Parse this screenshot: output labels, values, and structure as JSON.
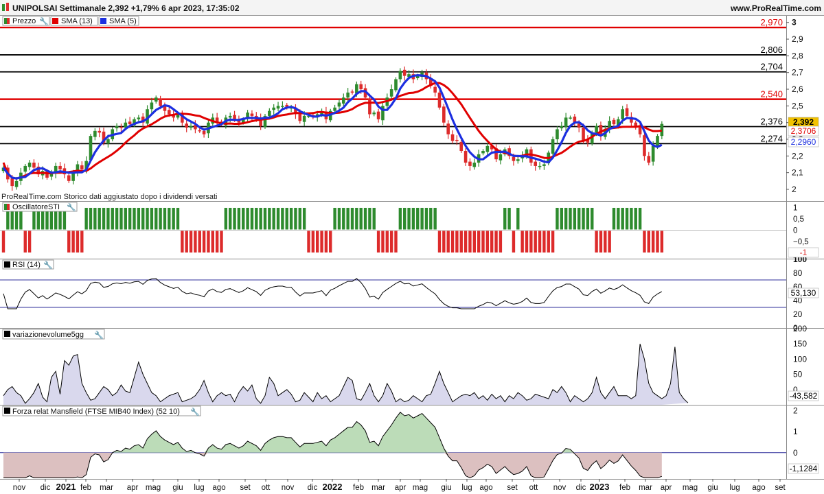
{
  "header": {
    "symbol": "UNIPOLSAI",
    "info": "UNIPOLSAI Settimanale 2,392 +1,79% 6 apr 2023, 17:35:02",
    "site": "www.ProRealTime.com"
  },
  "legend": {
    "price": "Prezzo",
    "sma13": "SMA (13)",
    "sma5": "SMA (5)",
    "watermark": "ProRealTime.com  Storico dati aggiustato dopo i dividendi versati"
  },
  "colors": {
    "up": "#2e8b2e",
    "down": "#dd2b2b",
    "sma13": "#e00000",
    "sma5": "#1c2fe0",
    "level_black": "#000000",
    "level_red": "#e00000",
    "last_price_bg": "#f2c200",
    "grid": "#d9d9d9",
    "volume_fill": "#c9c8e6",
    "mansfield_pos": "#bcdcb8",
    "mansfield_neg": "#dcc0c0"
  },
  "chart_data": [
    {
      "name": "price",
      "type": "candlestick",
      "ylim": [
        2.0,
        3.0
      ],
      "yticks": [
        "3",
        "2,9",
        "2,8",
        "2,7",
        "2,6",
        "2,5",
        "2,4",
        "2,3",
        "2,2",
        "2,1",
        "2"
      ],
      "levels": [
        {
          "value": 2.97,
          "label": "2,970",
          "color": "red"
        },
        {
          "value": 2.806,
          "label": "2,806",
          "color": "black"
        },
        {
          "value": 2.704,
          "label": "2,704",
          "color": "black"
        },
        {
          "value": 2.54,
          "label": "2,540",
          "color": "red"
        },
        {
          "value": 2.376,
          "label": "2,376",
          "color": "black"
        },
        {
          "value": 2.274,
          "label": "2,274",
          "color": "black"
        }
      ],
      "last_price": {
        "value": 2.392,
        "label": "2,392"
      },
      "sma13_last": {
        "value": 2.3706,
        "label": "2,3706"
      },
      "sma5_last": {
        "value": 2.296,
        "label": "2,2960"
      },
      "closes": [
        2.13,
        2.06,
        2.02,
        2.05,
        2.1,
        2.14,
        2.16,
        2.13,
        2.09,
        2.11,
        2.07,
        2.1,
        2.14,
        2.12,
        2.09,
        2.05,
        2.1,
        2.15,
        2.12,
        2.17,
        2.32,
        2.35,
        2.34,
        2.28,
        2.3,
        2.36,
        2.38,
        2.37,
        2.4,
        2.39,
        2.42,
        2.43,
        2.4,
        2.48,
        2.52,
        2.55,
        2.5,
        2.47,
        2.45,
        2.43,
        2.45,
        2.4,
        2.37,
        2.38,
        2.36,
        2.35,
        2.33,
        2.4,
        2.43,
        2.4,
        2.39,
        2.43,
        2.44,
        2.42,
        2.4,
        2.42,
        2.46,
        2.44,
        2.42,
        2.38,
        2.44,
        2.47,
        2.49,
        2.5,
        2.5,
        2.49,
        2.49,
        2.45,
        2.41,
        2.44,
        2.44,
        2.44,
        2.45,
        2.46,
        2.42,
        2.47,
        2.49,
        2.52,
        2.55,
        2.58,
        2.58,
        2.63,
        2.6,
        2.55,
        2.45,
        2.46,
        2.42,
        2.5,
        2.55,
        2.6,
        2.66,
        2.71,
        2.68,
        2.69,
        2.66,
        2.68,
        2.7,
        2.66,
        2.62,
        2.58,
        2.49,
        2.4,
        2.33,
        2.29,
        2.29,
        2.23,
        2.16,
        2.14,
        2.16,
        2.21,
        2.23,
        2.26,
        2.24,
        2.18,
        2.21,
        2.24,
        2.2,
        2.17,
        2.18,
        2.2,
        2.24,
        2.16,
        2.14,
        2.14,
        2.15,
        2.22,
        2.3,
        2.36,
        2.38,
        2.43,
        2.43,
        2.4,
        2.37,
        2.29,
        2.28,
        2.34,
        2.38,
        2.32,
        2.36,
        2.41,
        2.39,
        2.42,
        2.48,
        2.44,
        2.4,
        2.37,
        2.33,
        2.2,
        2.16,
        2.26,
        2.32,
        2.392
      ]
    },
    {
      "name": "OscillatoreSTI",
      "type": "bar",
      "ylim": [
        -1,
        1
      ],
      "yticks": [
        "1",
        "0,5",
        "0",
        "−0,5",
        "−1"
      ],
      "last": {
        "value": -1,
        "label": "-1"
      }
    },
    {
      "name": "RSI (14)",
      "type": "line",
      "ylim": [
        0,
        100
      ],
      "yticks": [
        "100",
        "80",
        "60",
        "40",
        "20",
        "0"
      ],
      "bands": [
        70,
        30
      ],
      "last": {
        "value": 53.13,
        "label": "53,130"
      }
    },
    {
      "name": "variazionevolume5gg",
      "type": "area",
      "ylim": [
        -50,
        200
      ],
      "yticks": [
        "200",
        "150",
        "100",
        "50",
        "0"
      ],
      "last": {
        "value": -43.582,
        "label": "-43,582"
      },
      "values": [
        -20,
        0,
        10,
        -10,
        -20,
        -45,
        -30,
        -10,
        20,
        -25,
        -40,
        40,
        60,
        -15,
        95,
        80,
        110,
        115,
        20,
        -10,
        -35,
        -30,
        -10,
        10,
        0,
        -20,
        -10,
        15,
        -5,
        -10,
        40,
        90,
        50,
        20,
        -10,
        -20,
        -40,
        -30,
        -20,
        -15,
        -10,
        -40,
        -35,
        -30,
        -20,
        0,
        30,
        -10,
        -40,
        -20,
        -10,
        -20,
        -15,
        -40,
        -10,
        10,
        -5,
        15,
        -30,
        -45,
        -20,
        40,
        20,
        -20,
        -10,
        0,
        -15,
        -40,
        -35,
        -10,
        -25,
        -40,
        -10,
        -30,
        -20,
        -40,
        -30,
        -20,
        10,
        40,
        30,
        -30,
        -35,
        -10,
        20,
        -20,
        -40,
        -20,
        20,
        -5,
        -40,
        -30,
        -40,
        -35,
        -20,
        -30,
        -40,
        -20,
        -15,
        20,
        60,
        20,
        -10,
        -40,
        -30,
        -20,
        -15,
        -20,
        -10,
        -30,
        -20,
        -35,
        -15,
        -30,
        -20,
        -40,
        -20,
        -30,
        -10,
        -20,
        -35,
        -30,
        -15,
        -20,
        -25,
        -30,
        0,
        -10,
        10,
        -10,
        -40,
        -20,
        -30,
        -40,
        -30,
        -10,
        40,
        -10,
        -30,
        -10,
        10,
        -20,
        -20,
        -20,
        -30,
        -20,
        150,
        100,
        20,
        -10,
        -20,
        -30,
        -20,
        20,
        140,
        -10,
        -30,
        -43.582
      ]
    },
    {
      "name": "Forza relat Mansfield (FTSE MIB40 Index) (52 10)",
      "type": "area",
      "ylim": [
        -1.2,
        2.0
      ],
      "yticks": [
        "2",
        "1",
        "0"
      ],
      "last": {
        "value": -1.1284,
        "label": "-1,1284"
      }
    }
  ],
  "xaxis": {
    "ticks": [
      {
        "label": "nov",
        "bold": false
      },
      {
        "label": "dic",
        "bold": false
      },
      {
        "label": "2021",
        "bold": true
      },
      {
        "label": "feb",
        "bold": false
      },
      {
        "label": "mar",
        "bold": false
      },
      {
        "label": "apr",
        "bold": false
      },
      {
        "label": "mag",
        "bold": false
      },
      {
        "label": "giu",
        "bold": false
      },
      {
        "label": "lug",
        "bold": false
      },
      {
        "label": "ago",
        "bold": false
      },
      {
        "label": "set",
        "bold": false
      },
      {
        "label": "ott",
        "bold": false
      },
      {
        "label": "nov",
        "bold": false
      },
      {
        "label": "dic",
        "bold": false
      },
      {
        "label": "2022",
        "bold": true
      },
      {
        "label": "feb",
        "bold": false
      },
      {
        "label": "mar",
        "bold": false
      },
      {
        "label": "apr",
        "bold": false
      },
      {
        "label": "mag",
        "bold": false
      },
      {
        "label": "giu",
        "bold": false
      },
      {
        "label": "lug",
        "bold": false
      },
      {
        "label": "ago",
        "bold": false
      },
      {
        "label": "set",
        "bold": false
      },
      {
        "label": "ott",
        "bold": false
      },
      {
        "label": "nov",
        "bold": false
      },
      {
        "label": "dic",
        "bold": false
      },
      {
        "label": "2023",
        "bold": true
      },
      {
        "label": "feb",
        "bold": false
      },
      {
        "label": "mar",
        "bold": false
      },
      {
        "label": "apr",
        "bold": false
      },
      {
        "label": "mag",
        "bold": false
      },
      {
        "label": "giu",
        "bold": false
      },
      {
        "label": "lug",
        "bold": false
      },
      {
        "label": "ago",
        "bold": false
      },
      {
        "label": "set",
        "bold": false
      }
    ]
  }
}
